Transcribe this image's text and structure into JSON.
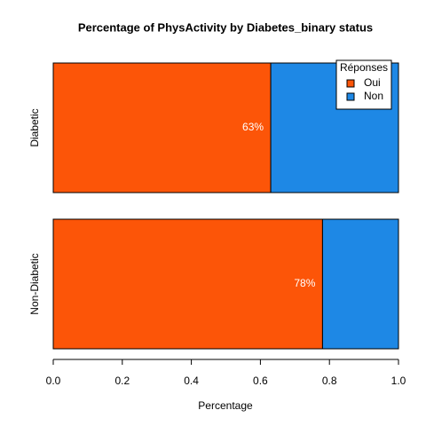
{
  "chart_data": {
    "type": "stacked_barh",
    "title": "Percentage of PhysActivity by Diabetes_binary status",
    "xlabel": "Percentage",
    "categories": [
      "Diabetic",
      "Non-Diabetic"
    ],
    "series": [
      {
        "name": "Oui",
        "color": "#fc5508",
        "values": [
          0.63,
          0.78
        ],
        "value_labels": [
          "63%",
          "78%"
        ]
      },
      {
        "name": "Non",
        "color": "#1e88e5",
        "values": [
          0.37,
          0.22
        ]
      }
    ],
    "xlim": [
      0,
      1
    ],
    "xticks": [
      {
        "value": 0,
        "label": "0.0"
      },
      0.2,
      0.4,
      0.6,
      0.8,
      {
        "value": 1,
        "label": "1.0"
      }
    ],
    "legend": {
      "title": "Réponses",
      "position": "topright"
    }
  }
}
